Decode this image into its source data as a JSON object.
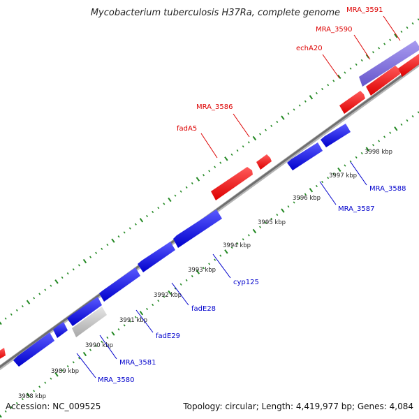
{
  "title": "Mycobacterium tuberculosis H37Ra, complete genome",
  "accession": "Accession: NC_009525",
  "summary": "Topology: circular; Length: 4,419,977 bp; Genes: 4,084",
  "colors": {
    "backbone": "#8a8a8a",
    "forward_gene": "#ff0000",
    "reverse_gene": "#0000e0",
    "pseudo_gene": "#bbbbbb",
    "highlight_gene": "#7766dd",
    "tick": "#228822",
    "forward_label": "#dd0000",
    "reverse_label": "#0000cc"
  },
  "scale_labels": [
    "3988 kbp",
    "3989 kbp",
    "3990 kbp",
    "3991 kbp",
    "3992 kbp",
    "3993 kbp",
    "3994 kbp",
    "3995 kbp",
    "3996 kbp",
    "3997 kbp",
    "3998 kbp"
  ],
  "forward_labels": [
    {
      "text": "fadA5"
    },
    {
      "text": "MRA_3586"
    },
    {
      "text": "echA20"
    },
    {
      "text": "MRA_3590"
    },
    {
      "text": "MRA_3591"
    }
  ],
  "reverse_labels": [
    {
      "text": "MRA_3580"
    },
    {
      "text": "MRA_3581"
    },
    {
      "text": "fadE29"
    },
    {
      "text": "fadE28"
    },
    {
      "text": "cyp125"
    },
    {
      "text": "MRA_3587"
    },
    {
      "text": "MRA_3588"
    }
  ]
}
